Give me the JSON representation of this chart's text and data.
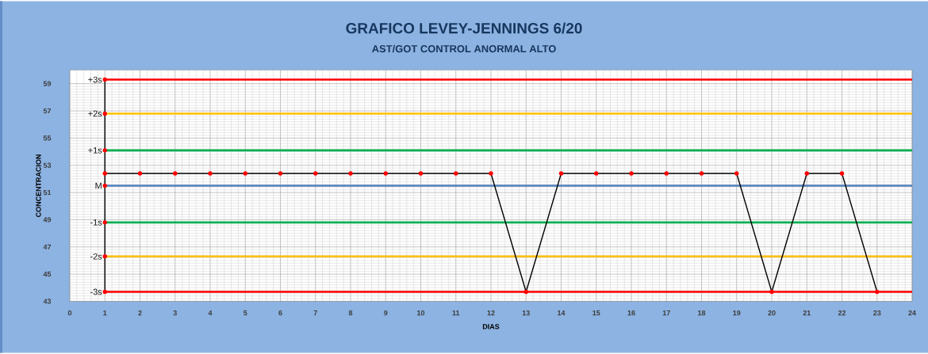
{
  "chart_data": {
    "type": "line",
    "title": "GRAFICO LEVEY-JENNINGS 6/20",
    "subtitle": "AST/GOT CONTROL ANORMAL ALTO",
    "xlabel": "DIAS",
    "ylabel": "CONCENTRACION",
    "xlim": [
      0,
      24
    ],
    "xticks": [
      0,
      1,
      2,
      3,
      4,
      5,
      6,
      7,
      8,
      9,
      10,
      11,
      12,
      13,
      14,
      15,
      16,
      17,
      18,
      19,
      20,
      21,
      22,
      23,
      24
    ],
    "ylim": [
      43,
      60
    ],
    "yticks": [
      43,
      45,
      47,
      49,
      51,
      53,
      55,
      57,
      59
    ],
    "grid": true,
    "marker": "circle",
    "line_style": "solid",
    "series": [
      {
        "color": "#000000",
        "x": [
          1,
          2,
          3,
          4,
          5,
          6,
          7,
          8,
          9,
          10,
          11,
          12,
          13,
          14,
          15,
          16,
          17,
          18,
          19,
          20,
          21,
          22,
          23
        ],
        "values": [
          52.4,
          52.4,
          52.4,
          52.4,
          52.4,
          52.4,
          52.4,
          52.4,
          52.4,
          52.4,
          52.4,
          52.4,
          43.7,
          52.4,
          52.4,
          52.4,
          52.4,
          52.4,
          52.4,
          43.7,
          52.4,
          52.4,
          43.7
        ]
      },
      {
        "color": "#000000",
        "x": [
          1,
          1,
          1,
          1,
          1,
          1,
          1
        ],
        "values": [
          59.3,
          56.8,
          54.1,
          51.5,
          48.8,
          46.3,
          43.7
        ]
      }
    ],
    "ref_lines": [
      {
        "axis": "y",
        "value": 59.3,
        "label": "+3s",
        "color": "#ff0000"
      },
      {
        "axis": "y",
        "value": 56.8,
        "label": "+2s",
        "color": "#ffc000"
      },
      {
        "axis": "y",
        "value": 54.1,
        "label": "+1s",
        "color": "#00b050"
      },
      {
        "axis": "y",
        "value": 51.5,
        "label": "M",
        "color": "#4f81bd"
      },
      {
        "axis": "y",
        "value": 48.8,
        "label": "-1s",
        "color": "#00b050"
      },
      {
        "axis": "y",
        "value": 46.3,
        "label": "-2s",
        "color": "#ffc000"
      },
      {
        "axis": "y",
        "value": 43.7,
        "label": "-3s",
        "color": "#ff0000"
      }
    ]
  }
}
